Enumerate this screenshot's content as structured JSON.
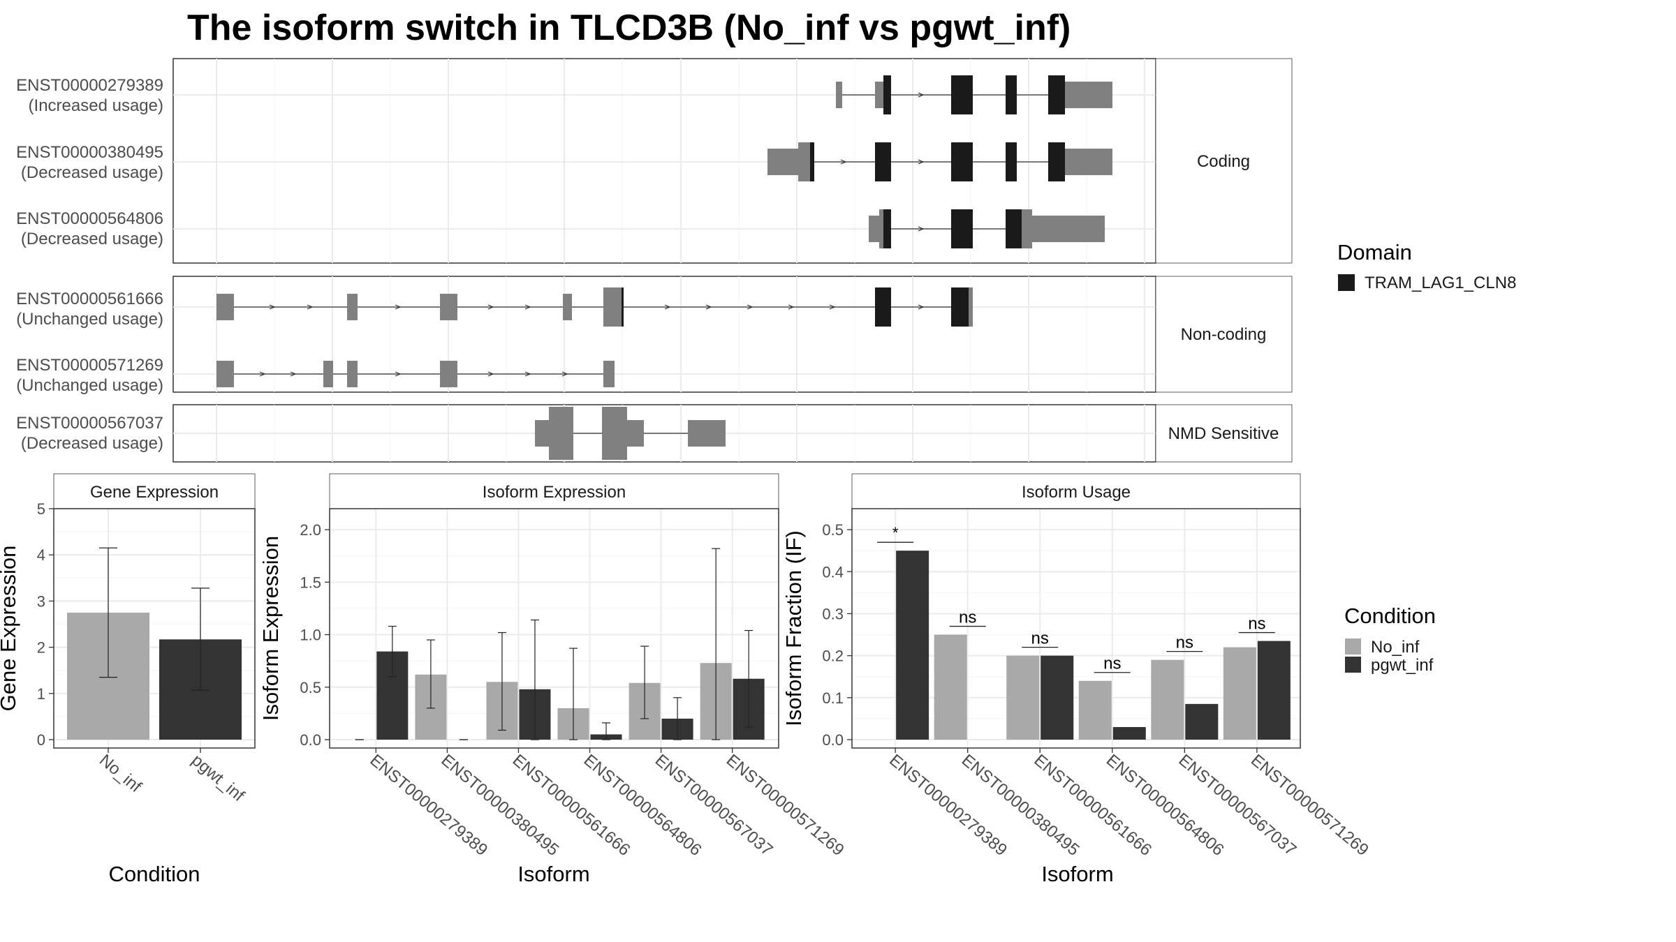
{
  "title": "The isoform switch in TLCD3B (No_inf vs pgwt_inf)",
  "colors": {
    "domain": "#1a1a1a",
    "utr": "#808080",
    "no_inf": "#a9a9a9",
    "pgwt_inf": "#333333",
    "grid": "#ebebeb",
    "panel_border": "#333333",
    "strip_fill": "#ffffff",
    "axis_text": "#4d4d4d"
  },
  "structure": {
    "groups": [
      {
        "label": "Coding",
        "transcripts": [
          {
            "id": "ENST00000279389",
            "status": "(Increased usage)"
          },
          {
            "id": "ENST00000380495",
            "status": "(Decreased usage)"
          },
          {
            "id": "ENST00000564806",
            "status": "(Decreased usage)"
          }
        ]
      },
      {
        "label": "Non-coding",
        "transcripts": [
          {
            "id": "ENST00000561666",
            "status": "(Unchanged usage)"
          },
          {
            "id": "ENST00000571269",
            "status": "(Unchanged usage)"
          }
        ]
      },
      {
        "label": "NMD Sensitive",
        "transcripts": [
          {
            "id": "ENST00000567037",
            "status": "(Decreased usage)"
          }
        ]
      }
    ],
    "legend_title": "Domain",
    "legend_item": "TRAM_LAG1_CLN8"
  },
  "chart_data": [
    {
      "type": "bar",
      "title": "Gene Expression",
      "xlabel": "Condition",
      "ylabel": "Gene Expression",
      "categories": [
        "No_inf",
        "pgwt_inf"
      ],
      "values": [
        2.75,
        2.17
      ],
      "error_low": [
        1.35,
        1.07
      ],
      "error_high": [
        4.15,
        3.28
      ],
      "ylim": [
        0,
        5
      ],
      "yticks": [
        0,
        1,
        2,
        3,
        4,
        5
      ]
    },
    {
      "type": "bar",
      "title": "Isoform Expression",
      "xlabel": "Isoform",
      "ylabel": "Isoform Expression",
      "categories": [
        "ENST00000279389",
        "ENST00000380495",
        "ENST00000561666",
        "ENST00000564806",
        "ENST00000567037",
        "ENST00000571269"
      ],
      "series": [
        {
          "name": "No_inf",
          "values": [
            0.0,
            0.62,
            0.55,
            0.3,
            0.54,
            0.73
          ],
          "error_low": [
            0.0,
            0.3,
            0.09,
            0.0,
            0.2,
            0.0
          ],
          "error_high": [
            0.0,
            0.95,
            1.02,
            0.87,
            0.89,
            1.82
          ]
        },
        {
          "name": "pgwt_inf",
          "values": [
            0.84,
            0.0,
            0.48,
            0.05,
            0.2,
            0.58
          ],
          "error_low": [
            0.6,
            0.0,
            0.0,
            0.0,
            0.0,
            0.12
          ],
          "error_high": [
            1.08,
            0.0,
            1.14,
            0.16,
            0.4,
            1.04
          ]
        }
      ],
      "ylim": [
        0,
        2.2
      ],
      "yticks": [
        "0.0",
        "0.5",
        "1.0",
        "1.5",
        "2.0"
      ]
    },
    {
      "type": "bar",
      "title": "Isoform Usage",
      "xlabel": "Isoform",
      "ylabel": "Isoform Fraction (IF)",
      "categories": [
        "ENST00000279389",
        "ENST00000380495",
        "ENST00000561666",
        "ENST00000564806",
        "ENST00000567037",
        "ENST00000571269"
      ],
      "series": [
        {
          "name": "No_inf",
          "values": [
            0.0,
            0.25,
            0.2,
            0.14,
            0.19,
            0.22
          ]
        },
        {
          "name": "pgwt_inf",
          "values": [
            0.45,
            0.0,
            0.2,
            0.03,
            0.085,
            0.235
          ]
        }
      ],
      "significance": [
        "*",
        "ns",
        "ns",
        "ns",
        "ns",
        "ns"
      ],
      "ylim": [
        0,
        0.55
      ],
      "yticks": [
        "0.0",
        "0.1",
        "0.2",
        "0.3",
        "0.4",
        "0.5"
      ]
    }
  ],
  "condition_legend": {
    "title": "Condition",
    "items": [
      "No_inf",
      "pgwt_inf"
    ]
  }
}
